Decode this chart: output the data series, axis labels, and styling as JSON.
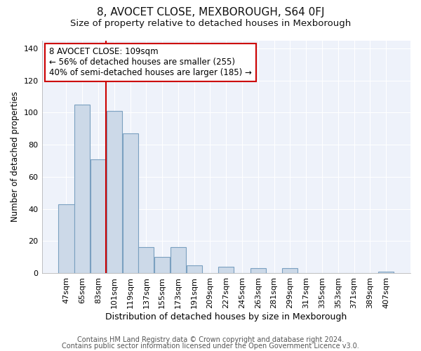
{
  "title": "8, AVOCET CLOSE, MEXBOROUGH, S64 0FJ",
  "subtitle": "Size of property relative to detached houses in Mexborough",
  "xlabel": "Distribution of detached houses by size in Mexborough",
  "ylabel": "Number of detached properties",
  "categories": [
    "47sqm",
    "65sqm",
    "83sqm",
    "101sqm",
    "119sqm",
    "137sqm",
    "155sqm",
    "173sqm",
    "191sqm",
    "209sqm",
    "227sqm",
    "245sqm",
    "263sqm",
    "281sqm",
    "299sqm",
    "317sqm",
    "335sqm",
    "353sqm",
    "371sqm",
    "389sqm",
    "407sqm"
  ],
  "values": [
    43,
    105,
    71,
    101,
    87,
    16,
    10,
    16,
    5,
    0,
    4,
    0,
    3,
    0,
    3,
    0,
    0,
    0,
    0,
    0,
    1
  ],
  "bar_color": "#ccd9e8",
  "bar_edge_color": "#7aa0c0",
  "vline_x_idx": 3,
  "vline_color": "#cc0000",
  "ylim": [
    0,
    145
  ],
  "yticks": [
    0,
    20,
    40,
    60,
    80,
    100,
    120,
    140
  ],
  "annotation_text": "8 AVOCET CLOSE: 109sqm\n← 56% of detached houses are smaller (255)\n40% of semi-detached houses are larger (185) →",
  "annotation_box_edge": "#cc0000",
  "footer1": "Contains HM Land Registry data © Crown copyright and database right 2024.",
  "footer2": "Contains public sector information licensed under the Open Government Licence v3.0.",
  "title_fontsize": 11,
  "subtitle_fontsize": 9.5,
  "xlabel_fontsize": 9,
  "ylabel_fontsize": 8.5,
  "annotation_fontsize": 8.5,
  "tick_fontsize": 8,
  "footer_fontsize": 7,
  "background_color": "#ffffff",
  "plot_bg_color": "#eef2fa",
  "grid_color": "#ffffff"
}
